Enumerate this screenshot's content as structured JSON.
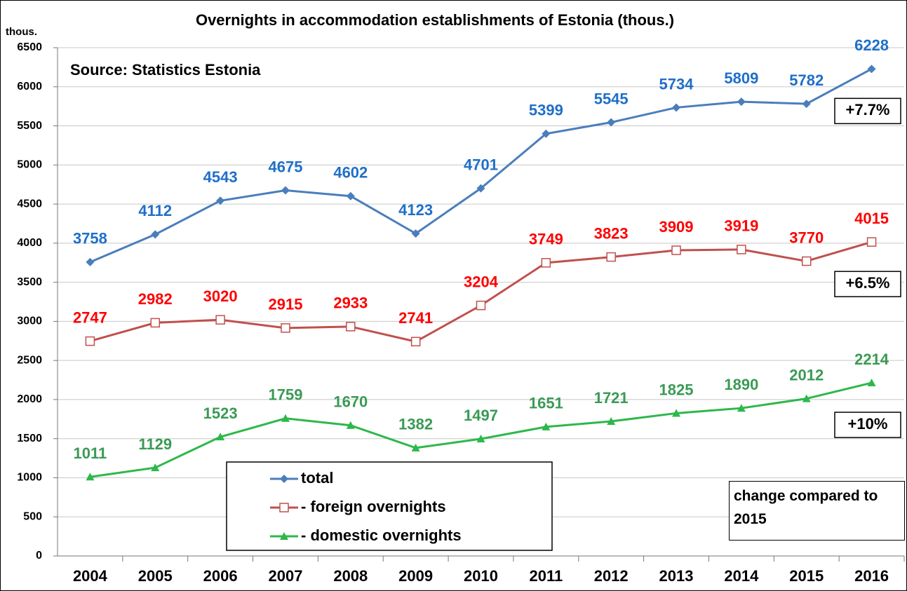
{
  "chart_data": {
    "type": "line",
    "title": "Overnights in accommodation establishments of Estonia (thous.)",
    "source": "Source: Statistics Estonia",
    "ylabel": "thous.",
    "note": "change compared to 2015",
    "categories": [
      "2004",
      "2005",
      "2006",
      "2007",
      "2008",
      "2009",
      "2010",
      "2011",
      "2012",
      "2013",
      "2014",
      "2015",
      "2016"
    ],
    "series": [
      {
        "name": "total",
        "color": "#4a7ebb",
        "label_color": "#1f6fc8",
        "marker": "diamond",
        "change": "+7.7%",
        "values": [
          3758,
          4112,
          4543,
          4675,
          4602,
          4123,
          4701,
          5399,
          5545,
          5734,
          5809,
          5782,
          6228
        ]
      },
      {
        "name": "- foreign overnights",
        "color": "#c0504d",
        "label_color": "#ff0000",
        "marker": "square",
        "change": "+6.5%",
        "values": [
          2747,
          2982,
          3020,
          2915,
          2933,
          2741,
          3204,
          3749,
          3823,
          3909,
          3919,
          3770,
          4015
        ]
      },
      {
        "name": "- domestic overnights",
        "color": "#2db84a",
        "label_color": "#3a9a55",
        "marker": "triangle",
        "change": "+10%",
        "values": [
          1011,
          1129,
          1523,
          1759,
          1670,
          1382,
          1497,
          1651,
          1721,
          1825,
          1890,
          2012,
          2214
        ]
      }
    ],
    "ylim": [
      0,
      6500
    ],
    "yticks": [
      0,
      500,
      1000,
      1500,
      2000,
      2500,
      3000,
      3500,
      4000,
      4500,
      5000,
      5500,
      6000,
      6500
    ],
    "grid": true
  }
}
